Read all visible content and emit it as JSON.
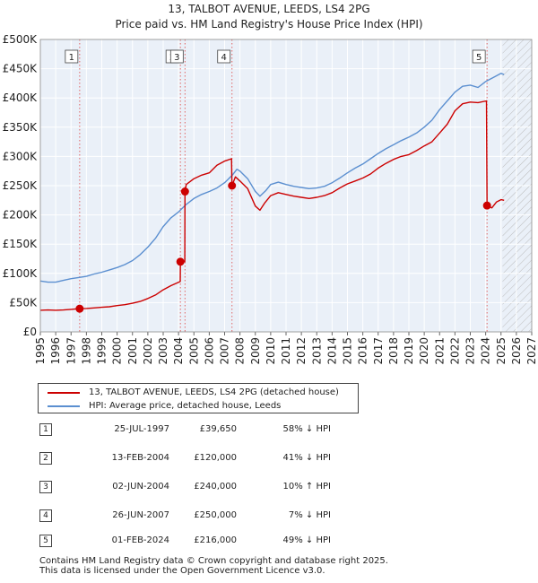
{
  "chart_data": {
    "type": "line",
    "title": "13, TALBOT AVENUE, LEEDS, LS4 2PG",
    "subtitle": "Price paid vs. HM Land Registry's House Price Index (HPI)",
    "xlabel": "",
    "ylabel": "",
    "xlim": [
      1995,
      2027
    ],
    "ylim": [
      0,
      500000
    ],
    "x_ticks": [
      "1995",
      "1996",
      "1997",
      "1998",
      "1999",
      "2000",
      "2001",
      "2002",
      "2003",
      "2004",
      "2005",
      "2006",
      "2007",
      "2008",
      "2009",
      "2010",
      "2011",
      "2012",
      "2013",
      "2014",
      "2015",
      "2016",
      "2017",
      "2018",
      "2019",
      "2020",
      "2021",
      "2022",
      "2023",
      "2024",
      "2025",
      "2026",
      "2027"
    ],
    "y_ticks": [
      {
        "value": 0,
        "label": "£0"
      },
      {
        "value": 50000,
        "label": "£50K"
      },
      {
        "value": 100000,
        "label": "£100K"
      },
      {
        "value": 150000,
        "label": "£150K"
      },
      {
        "value": 200000,
        "label": "£200K"
      },
      {
        "value": 250000,
        "label": "£250K"
      },
      {
        "value": 300000,
        "label": "£300K"
      },
      {
        "value": 350000,
        "label": "£350K"
      },
      {
        "value": 400000,
        "label": "£400K"
      },
      {
        "value": 450000,
        "label": "£450K"
      },
      {
        "value": 500000,
        "label": "£500K"
      }
    ],
    "grid": true,
    "future_hatch_from": 2025.1,
    "series": [
      {
        "name": "13, TALBOT AVENUE, LEEDS, LS4 2PG (detached house)",
        "color": "#cc0000",
        "points": [
          [
            1995,
            37000
          ],
          [
            1995.5,
            37500
          ],
          [
            1996,
            37000
          ],
          [
            1996.5,
            37500
          ],
          [
            1997,
            38500
          ],
          [
            1997.56,
            39650
          ],
          [
            1998,
            40000
          ],
          [
            1998.5,
            41000
          ],
          [
            1999,
            42000
          ],
          [
            1999.5,
            43000
          ],
          [
            2000,
            45000
          ],
          [
            2000.5,
            46500
          ],
          [
            2001,
            49000
          ],
          [
            2001.5,
            52000
          ],
          [
            2002,
            57000
          ],
          [
            2002.5,
            63000
          ],
          [
            2003,
            72000
          ],
          [
            2003.5,
            79000
          ],
          [
            2004.11,
            86000
          ],
          [
            2004.12,
            120000
          ],
          [
            2004.41,
            120000
          ],
          [
            2004.42,
            240000
          ],
          [
            2004.5,
            252000
          ],
          [
            2005,
            262000
          ],
          [
            2005.5,
            268000
          ],
          [
            2006,
            272000
          ],
          [
            2006.5,
            285000
          ],
          [
            2007,
            292000
          ],
          [
            2007.45,
            296000
          ],
          [
            2007.48,
            250000
          ],
          [
            2007.7,
            265000
          ],
          [
            2008,
            258000
          ],
          [
            2008.5,
            245000
          ],
          [
            2009,
            215000
          ],
          [
            2009.3,
            208000
          ],
          [
            2009.6,
            220000
          ],
          [
            2010,
            233000
          ],
          [
            2010.5,
            238000
          ],
          [
            2011,
            235000
          ],
          [
            2011.5,
            232000
          ],
          [
            2012,
            230000
          ],
          [
            2012.5,
            228000
          ],
          [
            2013,
            230000
          ],
          [
            2013.5,
            233000
          ],
          [
            2014,
            238000
          ],
          [
            2014.5,
            246000
          ],
          [
            2015,
            253000
          ],
          [
            2015.5,
            258000
          ],
          [
            2016,
            263000
          ],
          [
            2016.5,
            270000
          ],
          [
            2017,
            280000
          ],
          [
            2017.5,
            288000
          ],
          [
            2018,
            295000
          ],
          [
            2018.5,
            300000
          ],
          [
            2019,
            303000
          ],
          [
            2019.5,
            310000
          ],
          [
            2020,
            318000
          ],
          [
            2020.5,
            325000
          ],
          [
            2021,
            340000
          ],
          [
            2021.5,
            355000
          ],
          [
            2022,
            378000
          ],
          [
            2022.5,
            390000
          ],
          [
            2023,
            393000
          ],
          [
            2023.5,
            392000
          ],
          [
            2024.05,
            395000
          ],
          [
            2024.09,
            216000
          ],
          [
            2024.4,
            212000
          ],
          [
            2024.7,
            222000
          ],
          [
            2025,
            226000
          ],
          [
            2025.2,
            225000
          ]
        ]
      },
      {
        "name": "HPI: Average price, detached house, Leeds",
        "color": "#5b8fd0",
        "points": [
          [
            1995,
            87000
          ],
          [
            1995.5,
            85000
          ],
          [
            1996,
            85000
          ],
          [
            1996.5,
            88000
          ],
          [
            1997,
            91000
          ],
          [
            1997.5,
            93000
          ],
          [
            1998,
            95000
          ],
          [
            1998.5,
            99000
          ],
          [
            1999,
            102000
          ],
          [
            1999.5,
            106000
          ],
          [
            2000,
            110000
          ],
          [
            2000.5,
            115000
          ],
          [
            2001,
            122000
          ],
          [
            2001.5,
            132000
          ],
          [
            2002,
            145000
          ],
          [
            2002.5,
            160000
          ],
          [
            2003,
            180000
          ],
          [
            2003.5,
            195000
          ],
          [
            2004,
            205000
          ],
          [
            2004.5,
            218000
          ],
          [
            2005,
            228000
          ],
          [
            2005.5,
            235000
          ],
          [
            2006,
            240000
          ],
          [
            2006.5,
            246000
          ],
          [
            2007,
            255000
          ],
          [
            2007.5,
            268000
          ],
          [
            2007.8,
            278000
          ],
          [
            2008,
            275000
          ],
          [
            2008.5,
            262000
          ],
          [
            2009,
            240000
          ],
          [
            2009.3,
            232000
          ],
          [
            2009.7,
            242000
          ],
          [
            2010,
            252000
          ],
          [
            2010.5,
            256000
          ],
          [
            2011,
            252000
          ],
          [
            2011.5,
            249000
          ],
          [
            2012,
            247000
          ],
          [
            2012.5,
            245000
          ],
          [
            2013,
            246000
          ],
          [
            2013.5,
            249000
          ],
          [
            2014,
            255000
          ],
          [
            2014.5,
            263000
          ],
          [
            2015,
            272000
          ],
          [
            2015.5,
            280000
          ],
          [
            2016,
            287000
          ],
          [
            2016.5,
            296000
          ],
          [
            2017,
            305000
          ],
          [
            2017.5,
            313000
          ],
          [
            2018,
            320000
          ],
          [
            2018.5,
            327000
          ],
          [
            2019,
            333000
          ],
          [
            2019.5,
            340000
          ],
          [
            2020,
            350000
          ],
          [
            2020.5,
            362000
          ],
          [
            2021,
            380000
          ],
          [
            2021.5,
            395000
          ],
          [
            2022,
            410000
          ],
          [
            2022.5,
            420000
          ],
          [
            2023,
            422000
          ],
          [
            2023.5,
            418000
          ],
          [
            2024,
            428000
          ],
          [
            2024.5,
            435000
          ],
          [
            2025,
            442000
          ],
          [
            2025.2,
            440000
          ]
        ]
      }
    ],
    "sales": [
      {
        "num": "1",
        "x": 1997.56,
        "price": 39650,
        "date": "25-JUL-1997",
        "price_label": "£39,650",
        "hpi": "58% ↓ HPI"
      },
      {
        "num": "2",
        "x": 2004.12,
        "price": 120000,
        "date": "13-FEB-2004",
        "price_label": "£120,000",
        "hpi": "41% ↓ HPI"
      },
      {
        "num": "3",
        "x": 2004.42,
        "price": 240000,
        "date": "02-JUN-2004",
        "price_label": "£240,000",
        "hpi": "10% ↑ HPI"
      },
      {
        "num": "4",
        "x": 2007.48,
        "price": 250000,
        "date": "26-JUN-2007",
        "price_label": "£250,000",
        "hpi": "7% ↓ HPI"
      },
      {
        "num": "5",
        "x": 2024.09,
        "price": 216000,
        "date": "01-FEB-2024",
        "price_label": "£216,000",
        "hpi": "49% ↓ HPI"
      }
    ]
  },
  "legend": {
    "property_label": "13, TALBOT AVENUE, LEEDS, LS4 2PG (detached house)",
    "hpi_label": "HPI: Average price, detached house, Leeds",
    "property_color": "#cc0000",
    "hpi_color": "#5b8fd0"
  },
  "footer": {
    "line1": "Contains HM Land Registry data © Crown copyright and database right 2025.",
    "line2": "This data is licensed under the Open Government Licence v3.0."
  }
}
